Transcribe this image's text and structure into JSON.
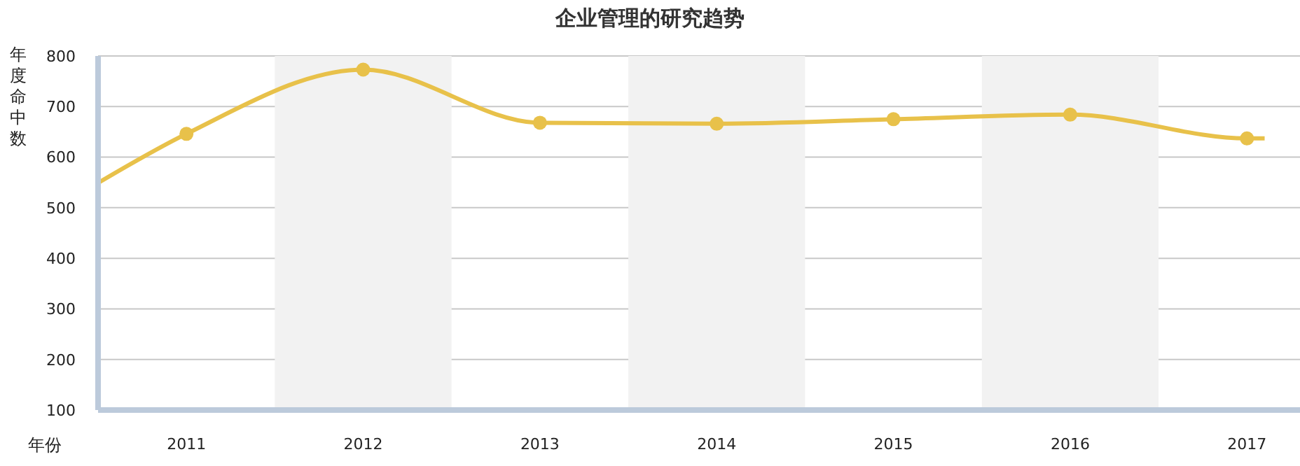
{
  "chart_data": {
    "type": "line",
    "title": "企业管理的研究趋势",
    "xlabel": "年份",
    "ylabel": "年度命中数",
    "x": [
      2010.5,
      2011,
      2012,
      2013,
      2014,
      2015,
      2016,
      2017,
      2017.1
    ],
    "series": [
      {
        "color": "#e8c14a",
        "values": [
          549,
          646,
          773,
          668,
          666,
          675,
          684,
          637,
          637
        ]
      }
    ],
    "xlim": [
      2010.5,
      2017.3
    ],
    "xticks": [
      2011,
      2012,
      2013,
      2014,
      2015,
      2016,
      2017
    ],
    "ylim": [
      100,
      800
    ],
    "yticks": [
      100,
      200,
      300,
      400,
      500,
      600,
      700,
      800
    ],
    "bands": [
      {
        "axis": "x",
        "from": 2011.5,
        "to": 2012.5,
        "color": "#f2f2f2"
      },
      {
        "axis": "x",
        "from": 2013.5,
        "to": 2014.5,
        "color": "#f2f2f2"
      },
      {
        "axis": "x",
        "from": 2015.5,
        "to": 2016.5,
        "color": "#f2f2f2"
      }
    ],
    "grid": "y",
    "marker": "circle",
    "line_style": "solid",
    "legend": false
  }
}
